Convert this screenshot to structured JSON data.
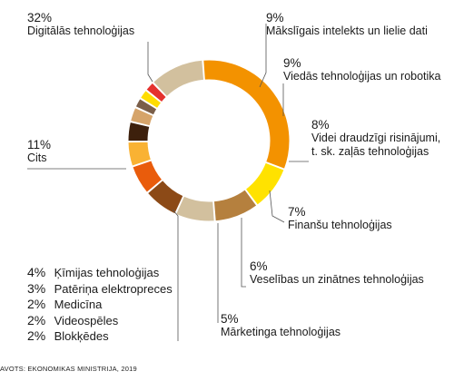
{
  "chart_data": {
    "type": "pie",
    "donut": true,
    "slices": [
      {
        "pct": "32%",
        "value": 32,
        "label": "Digitālās tehnoloģijas",
        "color": "#f39200"
      },
      {
        "pct": "9%",
        "value": 9,
        "label": "Mākslīgais intelekts un lielie dati",
        "color": "#ffe200"
      },
      {
        "pct": "9%",
        "value": 9,
        "label": "Viedās tehnoloģijas un robotika",
        "color": "#b5803e"
      },
      {
        "pct": "8%",
        "value": 8,
        "label": "Videi draudzīgi risinājumi, t. sk. zaļās tehnoloģijas",
        "label_lines": [
          "Videi draudzīgi risinājumi,",
          "t. sk. zaļās tehnoloģijas"
        ],
        "color": "#d2c09e"
      },
      {
        "pct": "7%",
        "value": 7,
        "label": "Finanšu tehnoloģijas",
        "color": "#8c4a17"
      },
      {
        "pct": "6%",
        "value": 6,
        "label": "Veselības un zinātnes tehnoloģijas",
        "color": "#e95c0c"
      },
      {
        "pct": "5%",
        "value": 5,
        "label": "Mārketinga tehnoloģijas",
        "color": "#f9b233"
      },
      {
        "pct": "4%",
        "value": 4,
        "label": "Ķīmijas tehnoloģijas",
        "color": "#3d200c"
      },
      {
        "pct": "3%",
        "value": 3,
        "label": "Patēriņa elektropreces",
        "color": "#d6a46a"
      },
      {
        "pct": "2%",
        "value": 2,
        "label": "Medicīna",
        "color": "#7a5e49"
      },
      {
        "pct": "2%",
        "value": 2,
        "label": "Videospēles",
        "color": "#ffdd00"
      },
      {
        "pct": "2%",
        "value": 2,
        "label": "Blokķēdes",
        "color": "#e5322e"
      },
      {
        "pct": "11%",
        "value": 11,
        "label": "Cits",
        "color": "#d2c09e"
      }
    ],
    "source": "AVOTS: EKONOMIKAS MINISTRIJA, 2019"
  }
}
